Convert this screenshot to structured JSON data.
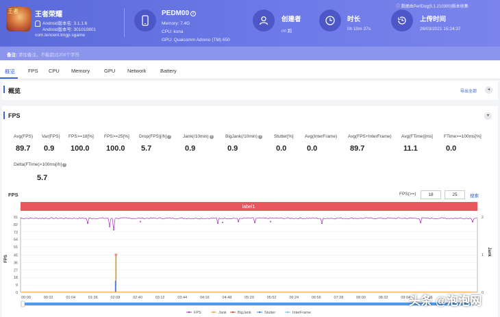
{
  "app": {
    "name": "王者荣耀",
    "icon_glyph": "王者",
    "android_version": "Android版本名: 3.1.1.6",
    "version_code": "Android版本号: 301010801",
    "package": "com.tencent.tmgp.sgame"
  },
  "device": {
    "model": "PEDM00",
    "info_badge": "i",
    "memory": "Memory: 7.4G",
    "cpu": "CPU: kona",
    "gpu": "GPU: Qualcomm Adreno (TM) 650"
  },
  "creator": {
    "title": "创建者",
    "value": "ml 跑"
  },
  "duration": {
    "title": "时长",
    "value": "0h 10m 37s"
  },
  "upload": {
    "title": "上传时间",
    "value": "26/03/2021 15:24:37"
  },
  "version_note": "ⓘ 数据由PerfDog(5.1.210300)版本收集",
  "remark": {
    "label": "备注:",
    "placeholder": "添加备注，不能超过200个字符"
  },
  "tabs": [
    "概览",
    "FPS",
    "CPU",
    "Memory",
    "GPU",
    "Network",
    "Battery"
  ],
  "overview": {
    "title": "概览",
    "export": "导出全部",
    "toggle": "◂"
  },
  "fps_section": {
    "title": "FPS",
    "toggle": "▾",
    "help": "?"
  },
  "metrics": [
    {
      "label": "Avg(FPS)",
      "value": "89.7",
      "help": false
    },
    {
      "label": "Var(FPS)",
      "value": "0.9",
      "help": false
    },
    {
      "label": "FPS>=18[%]",
      "value": "100.0",
      "help": false
    },
    {
      "label": "FPS>=25[%]",
      "value": "100.0",
      "help": false
    },
    {
      "label": "Drop(FPS)[/h]",
      "value": "5.7",
      "help": true
    },
    {
      "label": "Jank(/10min)",
      "value": "0.9",
      "help": true
    },
    {
      "label": "BigJank(/10min)",
      "value": "0.9",
      "help": true
    },
    {
      "label": "Stutter[%]",
      "value": "0.0",
      "help": false
    },
    {
      "label": "Avg(InterFrame)",
      "value": "0.0",
      "help": false
    },
    {
      "label": "Avg(FPS+InterFrame)",
      "value": "89.7",
      "help": false
    },
    {
      "label": "Avg(FTime)[ms]",
      "value": "11.1",
      "help": false
    },
    {
      "label": "FTime>=100ms[%]",
      "value": "0.0",
      "help": false
    },
    {
      "label": "Delta(FTime)>100ms[/h]",
      "value": "5.7",
      "help": true
    }
  ],
  "chart_ui": {
    "title": "FPS",
    "filter_label": "FPS(>=)",
    "filter_a": "18",
    "filter_b": "25",
    "search": "搜索"
  },
  "chart_data": {
    "type": "line",
    "banner_label": "label1",
    "y_axis_label": "FPS",
    "y2_axis_label": "Jank",
    "y_ticks": [
      0,
      9,
      18,
      27,
      36,
      45,
      55,
      64,
      73,
      82,
      91
    ],
    "y2_ticks": [
      0,
      1,
      2
    ],
    "ylim": [
      0,
      91
    ],
    "y2lim": [
      0,
      2
    ],
    "x_ticks": [
      "00:00",
      "00:32",
      "01:04",
      "01:36",
      "02:08",
      "02:40",
      "03:12",
      "03:44",
      "04:16",
      "04:48",
      "05:20",
      "05:52",
      "06:24",
      "06:56",
      "07:28",
      "08:00",
      "08:32",
      "09:04",
      "09:36"
    ],
    "series": [
      {
        "name": "FPS",
        "color": "#b040c0",
        "baseline": 89.5
      },
      {
        "name": "Jank",
        "color": "#f0a040"
      },
      {
        "name": "BigJank",
        "color": "#e04040"
      },
      {
        "name": "Stutter",
        "color": "#4a7be0"
      },
      {
        "name": "InterFrame",
        "color": "#7ac0e8"
      }
    ],
    "jank_spike": {
      "time": "02:08",
      "value": 1
    }
  },
  "watermark": "头条 @泡泡网"
}
